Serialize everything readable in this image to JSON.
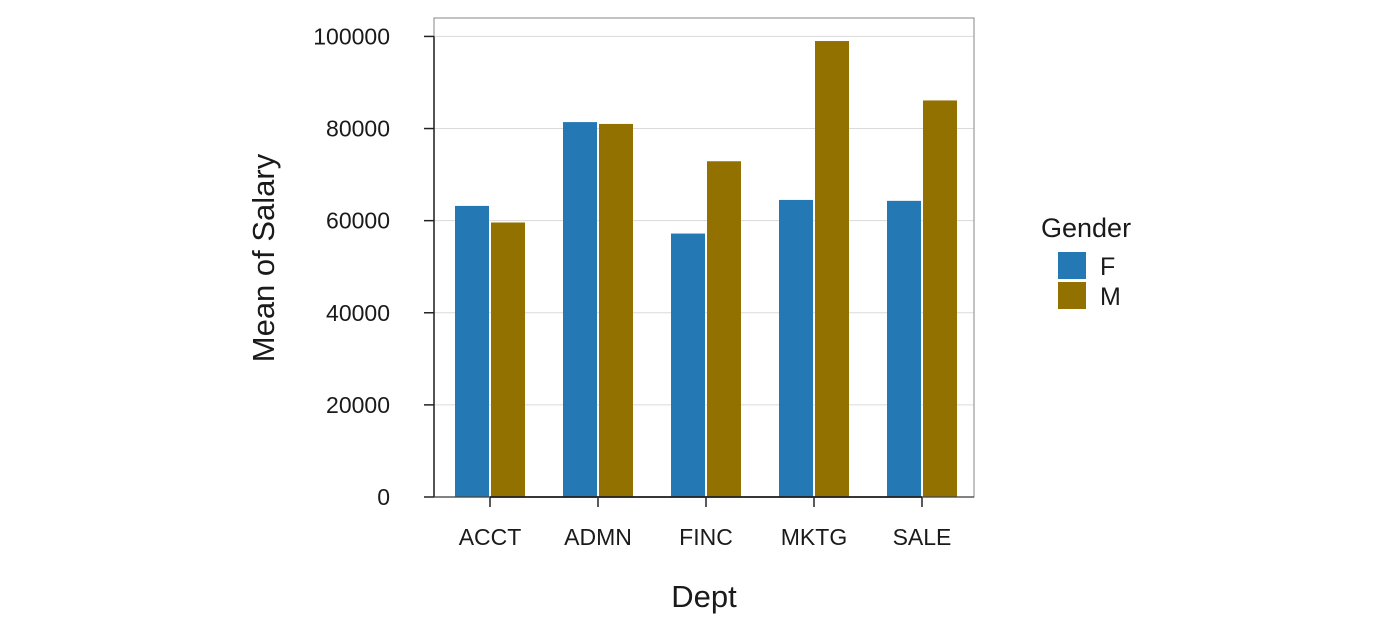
{
  "chart_data": {
    "type": "bar",
    "title": "",
    "xlabel": "Dept",
    "ylabel": "Mean of Salary",
    "categories": [
      "ACCT",
      "ADMN",
      "FINC",
      "MKTG",
      "SALE"
    ],
    "series": [
      {
        "name": "F",
        "color": "#2479B4",
        "values": [
          63200,
          81400,
          57200,
          64500,
          64300
        ]
      },
      {
        "name": "M",
        "color": "#937100",
        "values": [
          59600,
          81000,
          72900,
          99000,
          86100
        ]
      }
    ],
    "ylim": [
      0,
      104000
    ],
    "yticks": [
      0,
      20000,
      40000,
      60000,
      80000,
      100000
    ],
    "ytick_labels": [
      "0",
      "20000",
      "40000",
      "60000",
      "80000",
      "100000"
    ],
    "grid": "horizontal",
    "legend": {
      "title": "Gender",
      "position": "right"
    }
  }
}
